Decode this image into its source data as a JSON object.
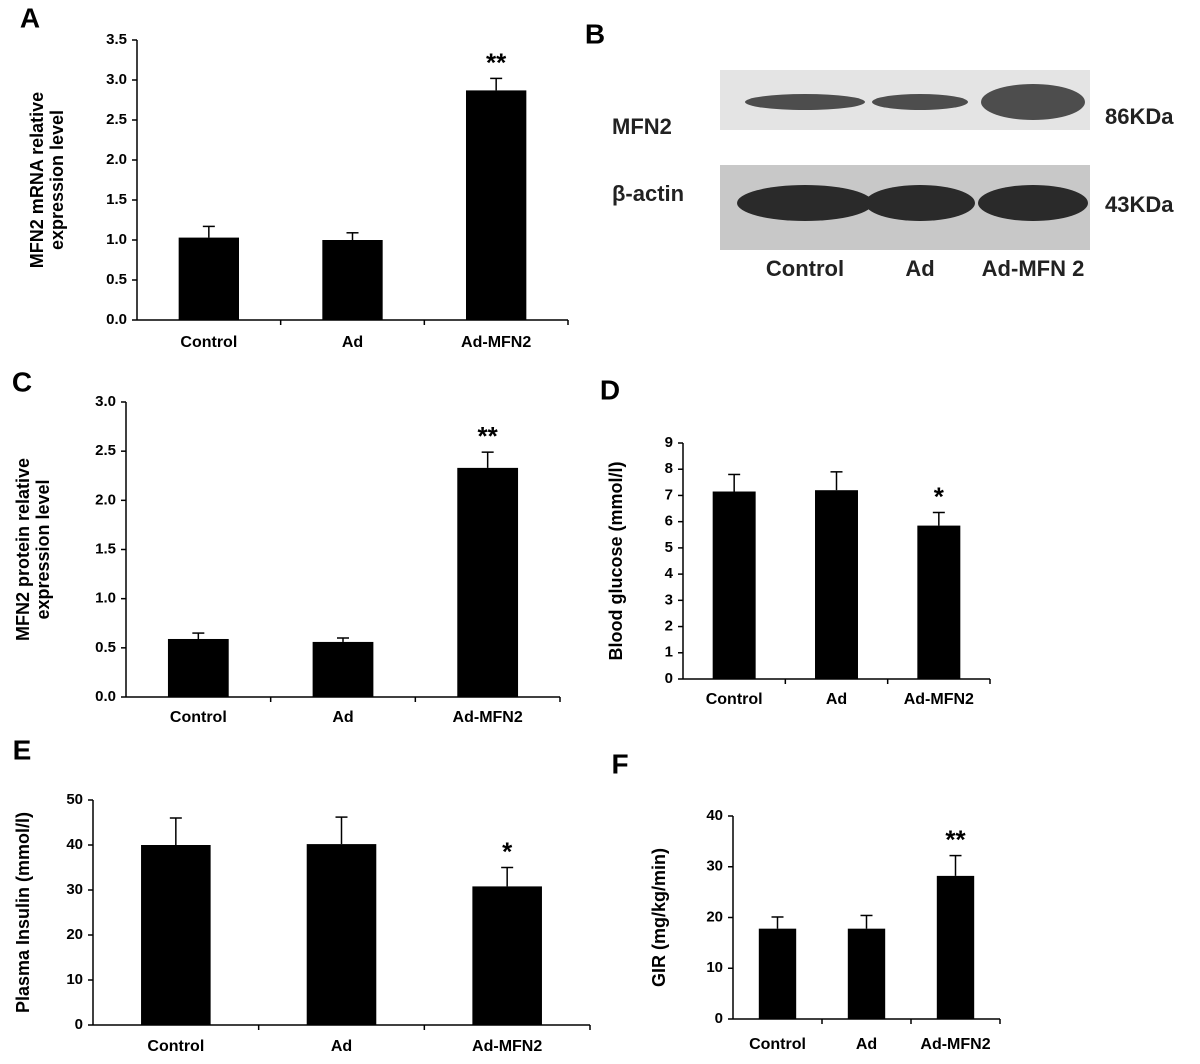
{
  "chart_data": [
    {
      "type": "bar",
      "panel": "A",
      "ylabel": [
        "MFN2 mRNA relative",
        "expression level"
      ],
      "categories": [
        "Control",
        "Ad",
        "Ad-MFN2"
      ],
      "values": [
        1.03,
        1.0,
        2.87
      ],
      "errors": [
        0.14,
        0.09,
        0.15
      ],
      "significance": [
        null,
        null,
        "**"
      ],
      "color": "#000000",
      "ylim": [
        0,
        3.5
      ],
      "yticks": [
        {
          "value": 0,
          "label": "0.0"
        },
        0.5,
        {
          "value": 1,
          "label": "1.0"
        },
        1.5,
        {
          "value": 2,
          "label": "2.0"
        },
        2.5,
        {
          "value": 3,
          "label": "3.0"
        },
        3.5
      ]
    },
    {
      "type": "blot",
      "panel": "B",
      "rows": [
        {
          "label": "MFN2",
          "size": "86KDa"
        },
        {
          "label": "β-actin",
          "size": "43KDa"
        }
      ],
      "categories": [
        "Control",
        "Ad",
        "Ad-MFN 2"
      ]
    },
    {
      "type": "bar",
      "panel": "C",
      "ylabel": [
        "MFN2 protein relative",
        "expression level"
      ],
      "categories": [
        "Control",
        "Ad",
        "Ad-MFN2"
      ],
      "values": [
        0.59,
        0.56,
        2.33
      ],
      "errors": [
        0.06,
        0.04,
        0.16
      ],
      "significance": [
        null,
        null,
        "**"
      ],
      "color": "#000000",
      "ylim": [
        0,
        3
      ],
      "yticks": [
        {
          "value": 0,
          "label": "0.0"
        },
        0.5,
        {
          "value": 1,
          "label": "1.0"
        },
        1.5,
        {
          "value": 2,
          "label": "2.0"
        },
        2.5,
        {
          "value": 3,
          "label": "3.0"
        }
      ]
    },
    {
      "type": "bar",
      "panel": "D",
      "ylabel": [
        "Blood glucose (mmol/l)"
      ],
      "categories": [
        "Control",
        "Ad",
        "Ad-MFN2"
      ],
      "values": [
        7.15,
        7.2,
        5.85
      ],
      "errors": [
        0.65,
        0.7,
        0.5
      ],
      "significance": [
        null,
        null,
        "*"
      ],
      "color": "#000000",
      "ylim": [
        0,
        9
      ],
      "yticks": [
        0,
        1,
        2,
        3,
        4,
        5,
        6,
        7,
        8,
        9
      ]
    },
    {
      "type": "bar",
      "panel": "E",
      "ylabel": [
        "Plasma Insulin (mmol/l)"
      ],
      "categories": [
        "Control",
        "Ad",
        "Ad-MFN2"
      ],
      "values": [
        40,
        40.2,
        30.8
      ],
      "errors": [
        6,
        6,
        4.2
      ],
      "significance": [
        null,
        null,
        "*"
      ],
      "color": "#000000",
      "ylim": [
        0,
        50
      ],
      "yticks": [
        0,
        10,
        20,
        30,
        40,
        50
      ]
    },
    {
      "type": "bar",
      "panel": "F",
      "ylabel": [
        "GIR  (mg/kg/min)"
      ],
      "categories": [
        "Control",
        "Ad",
        "Ad-MFN2"
      ],
      "values": [
        17.8,
        17.8,
        28.2
      ],
      "errors": [
        2.3,
        2.6,
        4
      ],
      "significance": [
        null,
        null,
        "**"
      ],
      "color": "#000000",
      "ylim": [
        0,
        40
      ],
      "yticks": [
        0,
        10,
        20,
        30,
        40
      ]
    }
  ]
}
